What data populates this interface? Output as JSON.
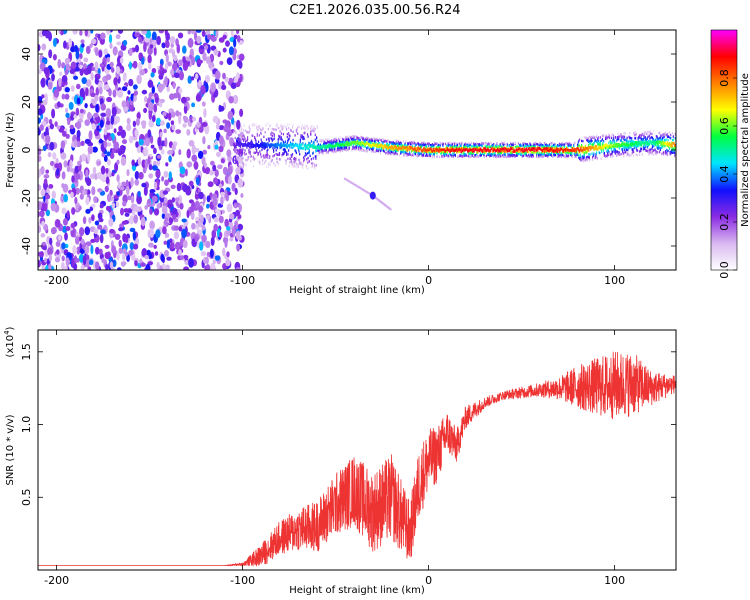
{
  "title": "C2E1.2026.035.00.56.R24",
  "chart_data": [
    {
      "type": "heatmap",
      "xlabel": "Height of straight line (km)",
      "ylabel": "Frequency (Hz)",
      "xlim": [
        -210,
        133
      ],
      "ylim": [
        -50,
        50
      ],
      "xticks": [
        -200,
        -100,
        0,
        100
      ],
      "yticks": [
        -40,
        -20,
        0,
        20,
        40
      ],
      "colorbar": {
        "label": "Normalized spectral amplitude",
        "range": [
          0,
          1
        ],
        "ticks": [
          "0.0",
          "0.2",
          "0.4",
          "0.6",
          "0.8"
        ],
        "colors": [
          "#ffffff",
          "#d9b8f0",
          "#8a2be2",
          "#1010ff",
          "#00e5ff",
          "#00ff40",
          "#ffff00",
          "#ff8000",
          "#ff0000",
          "#ff00ff"
        ]
      },
      "signal_track": [
        {
          "x": -105,
          "freq": 2,
          "amp": 0.25
        },
        {
          "x": -80,
          "freq": 2,
          "amp": 0.4
        },
        {
          "x": -60,
          "freq": 1,
          "amp": 0.5
        },
        {
          "x": -40,
          "freq": 3,
          "amp": 0.6
        },
        {
          "x": -20,
          "freq": 1,
          "amp": 0.75
        },
        {
          "x": 0,
          "freq": 0,
          "amp": 0.85
        },
        {
          "x": 20,
          "freq": 0,
          "amp": 0.9
        },
        {
          "x": 40,
          "freq": 0,
          "amp": 0.9
        },
        {
          "x": 60,
          "freq": 0,
          "amp": 0.9
        },
        {
          "x": 80,
          "freq": 0,
          "amp": 0.85
        },
        {
          "x": 100,
          "freq": 2,
          "amp": 0.6
        },
        {
          "x": 120,
          "freq": 3,
          "amp": 0.5
        },
        {
          "x": 133,
          "freq": 2,
          "amp": 0.8
        }
      ],
      "noise_region": {
        "x": [
          -210,
          -100
        ],
        "amp": 0.25
      },
      "mirror_signal": [
        {
          "x": -45,
          "freq": -12
        },
        {
          "x": -30,
          "freq": -19
        },
        {
          "x": -20,
          "freq": -25
        }
      ]
    },
    {
      "type": "line",
      "xlabel": "Height of straight line (km)",
      "ylabel": "SNR (10 * v/v)",
      "scale_label": "(x10",
      "scale_exp": "4",
      "scale_close": ")",
      "xlim": [
        -210,
        133
      ],
      "ylim": [
        0,
        1.65
      ],
      "xticks": [
        -200,
        -100,
        0,
        100
      ],
      "yticks": [
        0.5,
        1.0,
        1.5
      ],
      "ytick_labels": [
        "0.5",
        "1.0",
        "1.5"
      ],
      "series": [
        {
          "color": "#ee3333",
          "x": [
            -210,
            -150,
            -110,
            -100,
            -90,
            -80,
            -70,
            -60,
            -50,
            -40,
            -30,
            -20,
            -10,
            -5,
            0,
            5,
            10,
            15,
            20,
            30,
            40,
            50,
            60,
            70,
            80,
            90,
            100,
            110,
            120,
            133
          ],
          "y": [
            0.03,
            0.03,
            0.03,
            0.04,
            0.1,
            0.22,
            0.28,
            0.3,
            0.45,
            0.55,
            0.4,
            0.5,
            0.25,
            0.6,
            0.75,
            0.8,
            0.95,
            0.85,
            1.05,
            1.15,
            1.2,
            1.22,
            1.24,
            1.25,
            1.26,
            1.26,
            1.27,
            1.28,
            1.25,
            1.28
          ],
          "noise": [
            0,
            0,
            0,
            0.01,
            0.08,
            0.12,
            0.15,
            0.18,
            0.22,
            0.25,
            0.28,
            0.3,
            0.22,
            0.25,
            0.22,
            0.2,
            0.15,
            0.12,
            0.08,
            0.04,
            0.03,
            0.04,
            0.05,
            0.08,
            0.15,
            0.2,
            0.24,
            0.22,
            0.12,
            0.06
          ]
        }
      ]
    }
  ]
}
